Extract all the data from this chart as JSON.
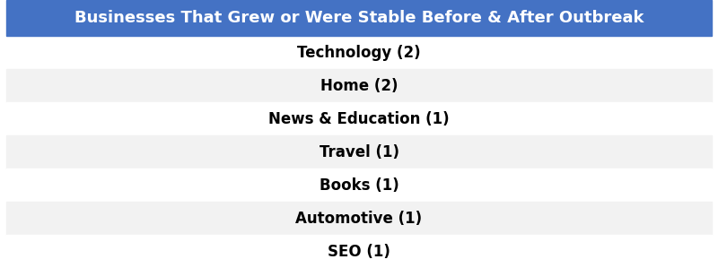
{
  "title": "Businesses That Grew or Were Stable Before & After Outbreak",
  "title_bg_color": "#4472C4",
  "title_text_color": "#FFFFFF",
  "title_fontsize": 13,
  "rows": [
    "Technology (2)",
    "Home (2)",
    "News & Education (1)",
    "Travel (1)",
    "Books (1)",
    "Automotive (1)",
    "SEO (1)"
  ],
  "row_colors": [
    "#FFFFFF",
    "#F2F2F2",
    "#FFFFFF",
    "#F2F2F2",
    "#FFFFFF",
    "#F2F2F2",
    "#FFFFFF"
  ],
  "row_text_color": "#000000",
  "row_fontsize": 12,
  "fig_width": 8.0,
  "fig_height": 2.99,
  "dpi": 100
}
